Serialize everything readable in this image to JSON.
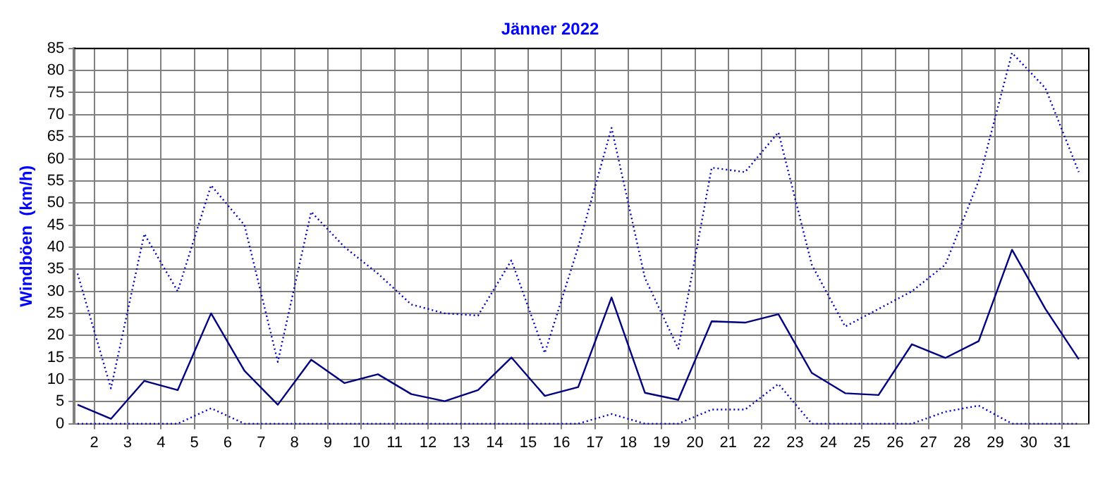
{
  "chart_data": {
    "type": "line",
    "title": "Jänner 2022",
    "ylabel": "Windböen  (km/h)",
    "x": [
      1.5,
      2.5,
      3.5,
      4.5,
      5.5,
      6.5,
      7.5,
      8.5,
      9.5,
      10.5,
      11.5,
      12.5,
      13.5,
      14.5,
      15.5,
      16.5,
      17.5,
      18.5,
      19.5,
      20.5,
      21.5,
      22.5,
      23.5,
      24.5,
      25.5,
      26.5,
      27.5,
      28.5,
      29.5,
      30.5,
      31.5
    ],
    "xlim": [
      1.4,
      31.8
    ],
    "xticks": [
      2,
      3,
      4,
      5,
      6,
      7,
      8,
      9,
      10,
      11,
      12,
      13,
      14,
      15,
      16,
      17,
      18,
      19,
      20,
      21,
      22,
      23,
      24,
      25,
      26,
      27,
      28,
      29,
      30,
      31
    ],
    "ylim": [
      0,
      85
    ],
    "yticks": [
      0,
      5,
      10,
      15,
      20,
      25,
      30,
      35,
      40,
      45,
      50,
      55,
      60,
      65,
      70,
      75,
      80,
      85
    ],
    "grid": true,
    "legend": false,
    "marker": "none",
    "series": [
      {
        "color": "#0000c0",
        "line_style": "dotted",
        "values": [
          34,
          8,
          43,
          30,
          54,
          45,
          14,
          48,
          40,
          34,
          27,
          25,
          24.5,
          37,
          16,
          40,
          67,
          33,
          17,
          58,
          57,
          66,
          36,
          22,
          26,
          30,
          36,
          55,
          84,
          76,
          57
        ]
      },
      {
        "color": "#000080",
        "line_style": "solid",
        "values": [
          4.3,
          1.1,
          9.7,
          7.6,
          25,
          12,
          4.3,
          14.5,
          9.2,
          11.2,
          6.7,
          5.1,
          7.6,
          15,
          6.3,
          8.3,
          28.6,
          7,
          5.4,
          23.2,
          22.9,
          24.8,
          11.5,
          6.9,
          6.5,
          18,
          14.9,
          18.7,
          39.4,
          26,
          14.6
        ]
      },
      {
        "color": "#0000c0",
        "line_style": "dotted",
        "values": [
          0,
          0,
          0,
          0,
          3.5,
          0,
          0,
          0,
          0,
          0,
          0,
          0,
          0,
          0,
          0,
          0,
          2.2,
          0,
          0,
          3.2,
          3.2,
          9,
          0,
          0,
          0,
          0,
          2.7,
          4.1,
          0,
          0,
          0
        ]
      }
    ]
  }
}
